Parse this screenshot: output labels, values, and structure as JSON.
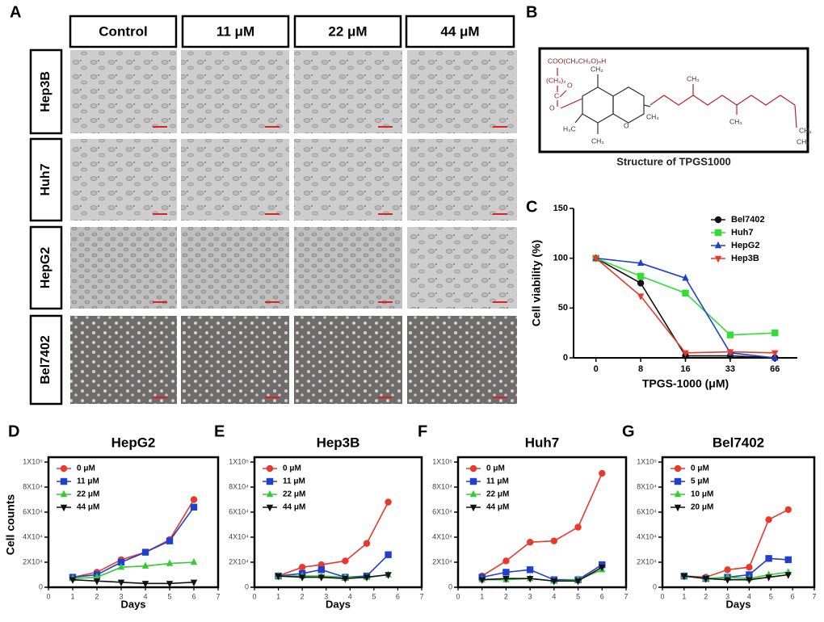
{
  "panel_a": {
    "letter": "A",
    "columns": [
      "Control",
      "11 μM",
      "22 μM",
      "44 μM"
    ],
    "rows": [
      "Hep3B",
      "Huh7",
      "HepG2",
      "Bel7402"
    ]
  },
  "panel_b": {
    "letter": "B",
    "caption": "Structure of TPGS1000",
    "labels": [
      "COO(CH₂CH₂O)ₙH",
      "(CH₂)₂",
      "C",
      "O",
      "O",
      "CH₃",
      "CH₃",
      "H₃C",
      "CH₃",
      "O",
      "CH₃",
      "CH₃",
      "CH₃",
      "CH₃"
    ]
  },
  "chart_data": [
    {
      "type": "line",
      "panel": "C",
      "ylabel": "Cell viability (%)",
      "xlabel": "TPGS-1000 (μM)",
      "categories": [
        "0",
        "8",
        "16",
        "33",
        "66"
      ],
      "ylim": [
        0,
        150
      ],
      "yticks": [
        0,
        50,
        100,
        150
      ],
      "legend": "top-right",
      "series": [
        {
          "name": "Bel7402",
          "color": "#111111",
          "marker": "circle",
          "values": [
            100,
            75,
            2,
            2,
            0
          ]
        },
        {
          "name": "Huh7",
          "color": "#33dd33",
          "marker": "square",
          "values": [
            100,
            82,
            65,
            23,
            25
          ]
        },
        {
          "name": "HepG2",
          "color": "#1f3fd0",
          "marker": "triangle",
          "values": [
            100,
            95,
            80,
            5,
            0
          ]
        },
        {
          "name": "Hep3B",
          "color": "#e8392b",
          "marker": "down-triangle",
          "values": [
            100,
            62,
            5,
            6,
            5
          ]
        }
      ]
    },
    {
      "type": "line",
      "panel": "D",
      "title": "HepG2",
      "ylabel": "Cell counts",
      "xlabel": "Days",
      "xlim": [
        0,
        7
      ],
      "xticks": [
        0,
        1,
        2,
        3,
        4,
        5,
        6,
        7
      ],
      "ylim": [
        0,
        100000
      ],
      "yticks": [
        0,
        {
          "value": 20000,
          "label": "2X10⁴"
        },
        {
          "value": 40000,
          "label": "4X10⁴"
        },
        {
          "value": 60000,
          "label": "6X10⁴"
        },
        {
          "value": 80000,
          "label": "8X10⁴"
        },
        {
          "value": 100000,
          "label": "1X10⁵"
        }
      ],
      "legend": "top-left",
      "series": [
        {
          "name": "0 μM",
          "color": "#e8392b",
          "marker": "circle",
          "x": [
            1,
            2,
            3,
            4,
            5,
            6
          ],
          "values": [
            8000,
            12000,
            22000,
            28000,
            38000,
            70000
          ]
        },
        {
          "name": "11 μM",
          "color": "#1f3fd0",
          "marker": "square",
          "x": [
            1,
            2,
            3,
            4,
            5,
            6
          ],
          "values": [
            8000,
            10000,
            20000,
            28000,
            37000,
            64000
          ]
        },
        {
          "name": "22 μM",
          "color": "#33cc33",
          "marker": "triangle",
          "x": [
            1,
            2,
            3,
            4,
            5,
            6
          ],
          "values": [
            7000,
            8000,
            16000,
            17000,
            19000,
            20000
          ]
        },
        {
          "name": "44 μM",
          "color": "#111111",
          "marker": "down-triangle",
          "x": [
            1,
            2,
            3,
            4,
            5,
            6
          ],
          "values": [
            6000,
            5000,
            4000,
            3000,
            3000,
            4000
          ]
        }
      ]
    },
    {
      "type": "line",
      "panel": "E",
      "title": "Hep3B",
      "xlabel": "Days",
      "xlim": [
        0,
        7
      ],
      "xticks": [
        0,
        1,
        2,
        3,
        4,
        5,
        6,
        7
      ],
      "ylim": [
        0,
        100000
      ],
      "yticks": [
        0,
        {
          "value": 20000,
          "label": "2X10⁴"
        },
        {
          "value": 40000,
          "label": "4X10⁴"
        },
        {
          "value": 60000,
          "label": "6X10⁴"
        },
        {
          "value": 80000,
          "label": "8X10⁴"
        },
        {
          "value": 100000,
          "label": "1X10⁵"
        }
      ],
      "legend": "top-left",
      "series": [
        {
          "name": "0 μM",
          "color": "#e8392b",
          "marker": "circle",
          "x": [
            1,
            2,
            2.8,
            3.8,
            4.7,
            5.6
          ],
          "values": [
            9000,
            16000,
            18000,
            21000,
            35000,
            68000
          ]
        },
        {
          "name": "11 μM",
          "color": "#1f3fd0",
          "marker": "square",
          "x": [
            1,
            2,
            2.8,
            3.8,
            4.7,
            5.6
          ],
          "values": [
            9000,
            11000,
            14000,
            8000,
            9000,
            26000
          ]
        },
        {
          "name": "22 μM",
          "color": "#33cc33",
          "marker": "triangle",
          "x": [
            1,
            2,
            2.8,
            3.8,
            4.7,
            5.6
          ],
          "values": [
            9000,
            9000,
            9000,
            8000,
            8000,
            10000
          ]
        },
        {
          "name": "44 μM",
          "color": "#111111",
          "marker": "down-triangle",
          "x": [
            1,
            2,
            2.8,
            3.8,
            4.7,
            5.6
          ],
          "values": [
            9000,
            8000,
            8000,
            7000,
            8000,
            10000
          ]
        }
      ]
    },
    {
      "type": "line",
      "panel": "F",
      "title": "Huh7",
      "xlim": [
        0,
        7
      ],
      "xticks": [
        0,
        1,
        2,
        3,
        4,
        5,
        6,
        7
      ],
      "ylim": [
        0,
        100000
      ],
      "yticks": [
        0,
        {
          "value": 20000,
          "label": "2X10⁴"
        },
        {
          "value": 40000,
          "label": "4X10⁴"
        },
        {
          "value": 60000,
          "label": "6X10⁴"
        },
        {
          "value": 80000,
          "label": "8X10⁴"
        },
        {
          "value": 100000,
          "label": "1X10⁵"
        }
      ],
      "legend": "top-left",
      "series": [
        {
          "name": "0 μM",
          "color": "#e8392b",
          "marker": "circle",
          "x": [
            1,
            2,
            3,
            4,
            5,
            6
          ],
          "values": [
            9000,
            21000,
            36000,
            37000,
            48000,
            91000
          ]
        },
        {
          "name": "11 μM",
          "color": "#1f3fd0",
          "marker": "square",
          "x": [
            1,
            2,
            3,
            4,
            5,
            6
          ],
          "values": [
            8000,
            12000,
            14000,
            6000,
            6000,
            18000
          ]
        },
        {
          "name": "22 μM",
          "color": "#33cc33",
          "marker": "triangle",
          "x": [
            1,
            2,
            3,
            4,
            5,
            6
          ],
          "values": [
            6000,
            6000,
            7000,
            5000,
            6000,
            14000
          ]
        },
        {
          "name": "44 μM",
          "color": "#111111",
          "marker": "down-triangle",
          "x": [
            1,
            2,
            3,
            4,
            5,
            6
          ],
          "values": [
            6000,
            7000,
            7000,
            5000,
            5000,
            16000
          ]
        }
      ]
    },
    {
      "type": "line",
      "panel": "G",
      "title": "Bel7402",
      "xlabel": "Days",
      "xlim": [
        0,
        7
      ],
      "xticks": [
        0,
        1,
        2,
        3,
        4,
        5,
        6,
        7
      ],
      "ylim": [
        0,
        100000
      ],
      "yticks": [
        0,
        {
          "value": 20000,
          "label": "2X10⁴"
        },
        {
          "value": 40000,
          "label": "4X10⁴"
        },
        {
          "value": 60000,
          "label": "6X10⁴"
        },
        {
          "value": 80000,
          "label": "8X10⁴"
        },
        {
          "value": 100000,
          "label": "1X10⁵"
        }
      ],
      "legend": "top-left",
      "series": [
        {
          "name": "0 μM",
          "color": "#e8392b",
          "marker": "circle",
          "x": [
            1,
            2,
            3,
            4,
            4.9,
            5.8
          ],
          "values": [
            9000,
            8000,
            14000,
            16000,
            54000,
            62000
          ]
        },
        {
          "name": "5 μM",
          "color": "#1f3fd0",
          "marker": "square",
          "x": [
            1,
            2,
            3,
            4,
            4.9,
            5.8
          ],
          "values": [
            9000,
            7000,
            8000,
            10000,
            23000,
            22000
          ]
        },
        {
          "name": "10 μM",
          "color": "#33cc33",
          "marker": "triangle",
          "x": [
            1,
            2,
            3,
            4,
            4.9,
            5.8
          ],
          "values": [
            9000,
            7000,
            8000,
            7000,
            10000,
            12000
          ]
        },
        {
          "name": "20 μM",
          "color": "#111111",
          "marker": "down-triangle",
          "x": [
            1,
            2,
            3,
            4,
            4.9,
            5.8
          ],
          "values": [
            9000,
            7000,
            6000,
            6000,
            8000,
            10000
          ]
        }
      ]
    }
  ]
}
